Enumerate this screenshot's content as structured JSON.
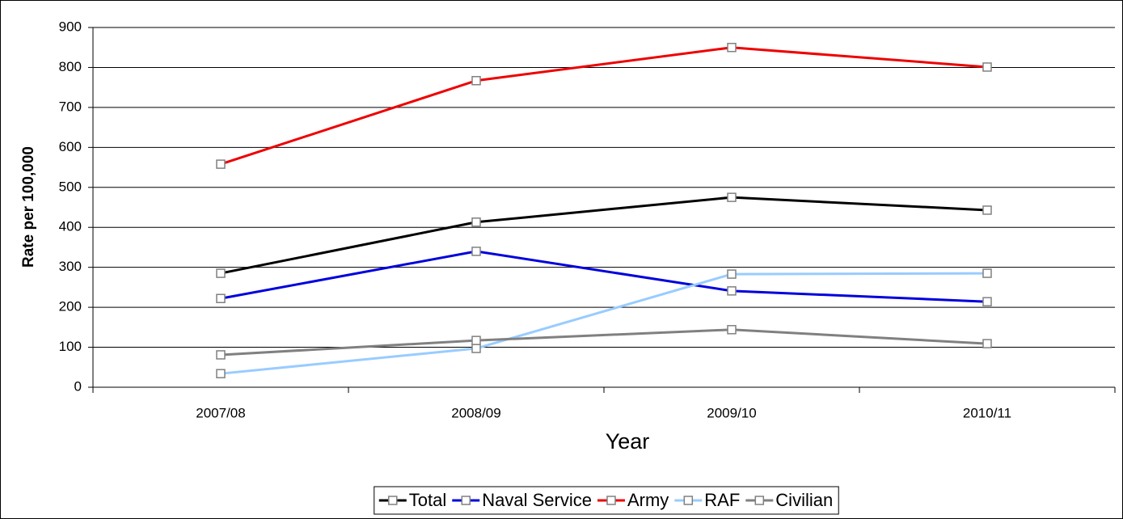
{
  "chart_data": {
    "type": "line",
    "x_label": "Year",
    "y_label": "Rate per 100,000",
    "categories": [
      "2007/08",
      "2008/09",
      "2009/10",
      "2010/11"
    ],
    "series": [
      {
        "name": "Total",
        "color": "#000000",
        "values": [
          285,
          413,
          475,
          443
        ]
      },
      {
        "name": "Naval Service",
        "color": "#0000dd",
        "values": [
          222,
          340,
          241,
          214
        ]
      },
      {
        "name": "Army",
        "color": "#ee0000",
        "values": [
          558,
          767,
          850,
          801
        ]
      },
      {
        "name": "RAF",
        "color": "#99ccff",
        "values": [
          34,
          97,
          283,
          285
        ]
      },
      {
        "name": "Civilian",
        "color": "#808080",
        "values": [
          81,
          117,
          144,
          109
        ]
      }
    ],
    "ylim": [
      0,
      900
    ],
    "yticks": [
      0,
      100,
      200,
      300,
      400,
      500,
      600,
      700,
      800,
      900
    ],
    "grid": true,
    "legend": "bottom"
  }
}
